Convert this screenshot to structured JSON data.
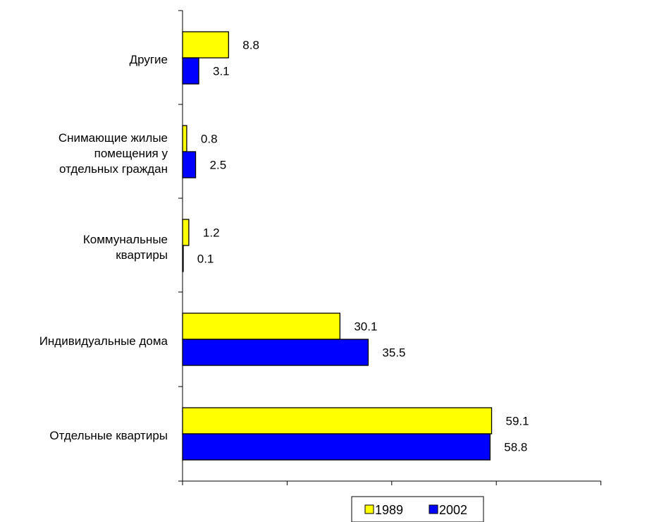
{
  "chart_data": {
    "type": "bar",
    "orientation": "horizontal",
    "categories": [
      [
        "Другие"
      ],
      [
        "Снимающие жилые",
        "помещения у",
        "отдельных граждан"
      ],
      [
        "Коммунальные",
        "квартиры"
      ],
      [
        "Индивидуальные дома"
      ],
      [
        "Отдельные квартиры"
      ]
    ],
    "series": [
      {
        "name": "1989",
        "color": "#ffff00",
        "values": [
          8.8,
          0.8,
          1.2,
          30.1,
          59.1
        ]
      },
      {
        "name": "2002",
        "color": "#0000ff",
        "values": [
          3.1,
          2.5,
          0.1,
          35.5,
          58.8
        ]
      }
    ],
    "value_labels": [
      [
        "8.8",
        "0.8",
        "1.2",
        "30.1",
        "59.1"
      ],
      [
        "3.1",
        "2.5",
        "0.1",
        "35.5",
        "58.8"
      ]
    ],
    "xlim": [
      0,
      80
    ],
    "grid": false,
    "legend_position": "bottom"
  }
}
